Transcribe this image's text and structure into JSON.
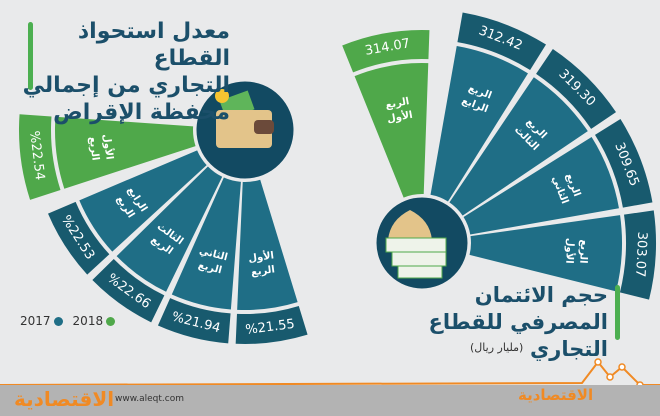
{
  "colors": {
    "green": "#4fa84a",
    "blue": "#1f6e86",
    "band": "#185a6e",
    "circle": "#124a62",
    "background": "#e9eaeb",
    "accent": "#f08a24"
  },
  "left_title": [
    "معدل استحواذ القطاع",
    "التجاري من إجمالي",
    "محفظة الإقراض"
  ],
  "right_title": [
    "حجم الائتمان",
    "المصرفي للقطاع التجاري"
  ],
  "unit": "(مليار ريال)",
  "legend": [
    {
      "label": "2017",
      "color": "#1f6e86"
    },
    {
      "label": "2018",
      "color": "#4fa84a"
    }
  ],
  "footer": {
    "site": "www.aleqt.com",
    "logo": "الاقتصادية"
  },
  "chart_data": [
    {
      "type": "bar",
      "title": "معدل استحواذ القطاع التجاري من إجمالي محفظة الإقراض",
      "unit": "%",
      "categories": [
        "الربع الأول 2018",
        "الربع الرابع 2017",
        "الربع الثالث 2017",
        "الربع الثاني 2017",
        "الربع الأول 2017"
      ],
      "series": [
        {
          "quarter": "الربع الأول",
          "year": "2018",
          "value": 22.54,
          "label": "%22.54"
        },
        {
          "quarter": "الربع الرابع",
          "year": "2017",
          "value": 22.53,
          "label": "%22.53"
        },
        {
          "quarter": "الربع الثالث",
          "year": "2017",
          "value": 22.66,
          "label": "%22.66"
        },
        {
          "quarter": "الربع الثاني",
          "year": "2017",
          "value": 21.94,
          "label": "%21.94"
        },
        {
          "quarter": "الربع الأول",
          "year": "2017",
          "value": 21.55,
          "label": "%21.55"
        }
      ]
    },
    {
      "type": "bar",
      "title": "حجم الائتمان المصرفي للقطاع التجاري",
      "unit": "مليار ريال",
      "categories": [
        "الربع الأول 2018",
        "الربع الرابع 2017",
        "الربع الثالث 2017",
        "الربع الثاني 2017",
        "الربع الأول 2017"
      ],
      "series": [
        {
          "quarter": "الربع الأول",
          "year": "2018",
          "value": 314.07,
          "label": "314.07"
        },
        {
          "quarter": "الربع الرابع",
          "year": "2017",
          "value": 312.42,
          "label": "312.42"
        },
        {
          "quarter": "الربع الثالث",
          "year": "2017",
          "value": 319.3,
          "label": "319.30"
        },
        {
          "quarter": "الربع الثاني",
          "year": "2017",
          "value": 309.65,
          "label": "309.65"
        },
        {
          "quarter": "الربع الأول",
          "year": "2017",
          "value": 303.07,
          "label": "303.07"
        }
      ]
    }
  ]
}
